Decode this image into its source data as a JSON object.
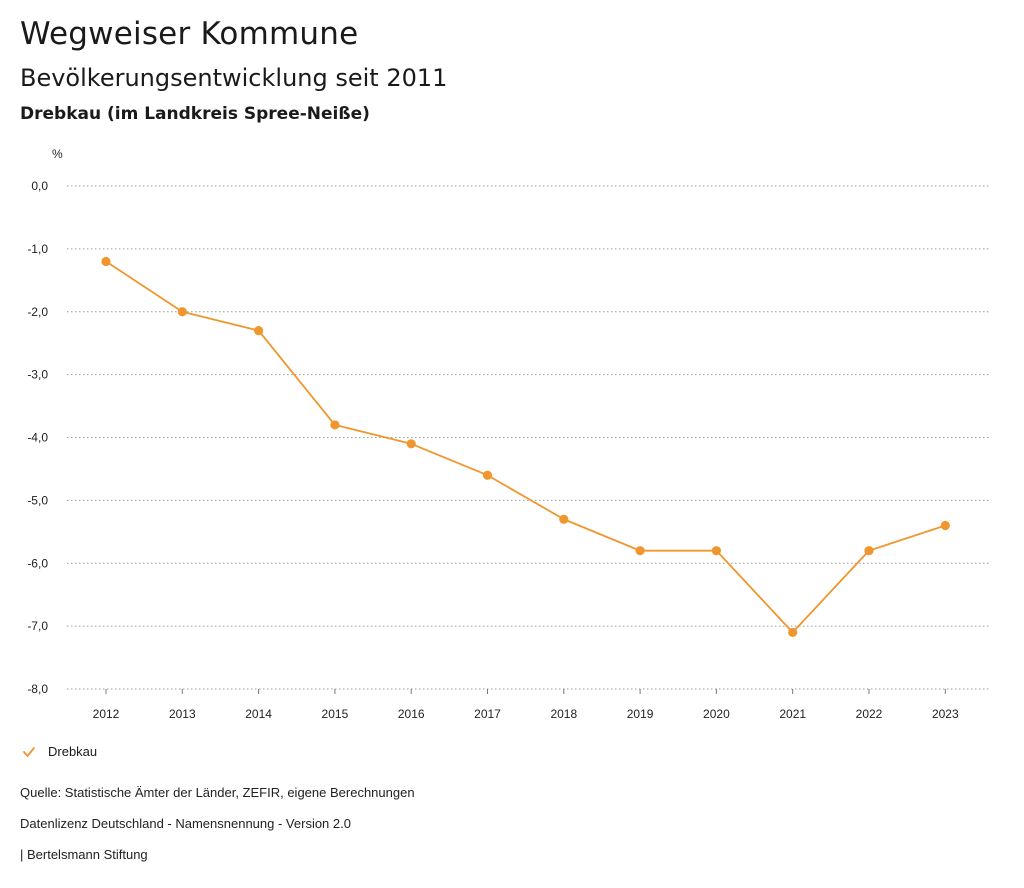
{
  "header": {
    "title": "Wegweiser Kommune",
    "subtitle": "Bevölkerungsentwicklung seit 2011",
    "region": "Drebkau (im Landkreis Spree-Neiße)"
  },
  "chart_data": {
    "type": "line",
    "ylabel": "%",
    "ylim": [
      -8.0,
      0.0
    ],
    "yticks": [
      "0,0",
      "-1,0",
      "-2,0",
      "-3,0",
      "-4,0",
      "-5,0",
      "-6,0",
      "-7,0",
      "-8,0"
    ],
    "x": [
      "2012",
      "2013",
      "2014",
      "2015",
      "2016",
      "2017",
      "2018",
      "2019",
      "2020",
      "2021",
      "2022",
      "2023"
    ],
    "series": [
      {
        "name": "Drebkau",
        "color": "#f0962e",
        "values": [
          -1.2,
          -2.0,
          -2.3,
          -3.8,
          -4.1,
          -4.6,
          -5.3,
          -5.8,
          -5.8,
          -7.1,
          -5.8,
          -5.4
        ]
      }
    ],
    "grid": true,
    "legend_position": "bottom-left"
  },
  "legend": {
    "label": "Drebkau"
  },
  "footer": {
    "source": "Quelle: Statistische Ämter der Länder, ZEFIR, eigene Berechnungen",
    "license": "Datenlizenz Deutschland - Namensnennung - Version 2.0",
    "publisher": "| Bertelsmann Stiftung"
  }
}
